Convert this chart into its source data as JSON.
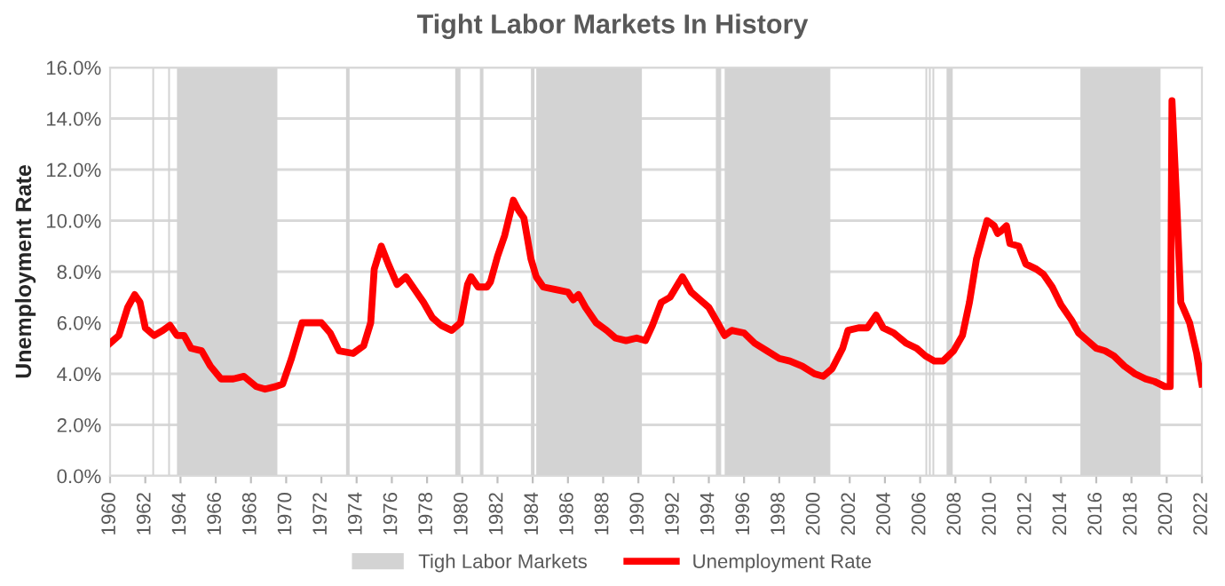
{
  "chart_data": {
    "type": "line",
    "title": "Tight Labor Markets In History",
    "ylabel": "Unemployment Rate",
    "xlim": [
      1960,
      2022
    ],
    "xticks": [
      1960,
      1962,
      1964,
      1966,
      1968,
      1970,
      1972,
      1974,
      1976,
      1978,
      1980,
      1982,
      1984,
      1986,
      1988,
      1990,
      1992,
      1994,
      1996,
      1998,
      2000,
      2002,
      2004,
      2006,
      2008,
      2010,
      2012,
      2014,
      2016,
      2018,
      2020,
      2022
    ],
    "ylim": [
      0,
      16
    ],
    "yticks": [
      {
        "value": 0,
        "label": "0.0%"
      },
      {
        "value": 2,
        "label": "2.0%"
      },
      {
        "value": 4,
        "label": "4.0%"
      },
      {
        "value": 6,
        "label": "6.0%"
      },
      {
        "value": 8,
        "label": "8.0%"
      },
      {
        "value": 10,
        "label": "10.0%"
      },
      {
        "value": 12,
        "label": "12.0%"
      },
      {
        "value": 14,
        "label": "14.0%"
      },
      {
        "value": 16,
        "label": "16.0%"
      }
    ],
    "grid": "y",
    "legend": "bottom",
    "marker": "none",
    "line_style": "solid",
    "bands": [
      {
        "axis": "x",
        "from": 1962.4,
        "to": 1962.5,
        "label": "Tigh Labor Markets",
        "color": "#d3d3d3"
      },
      {
        "axis": "x",
        "from": 1963.3,
        "to": 1963.4,
        "color": "#d3d3d3"
      },
      {
        "axis": "x",
        "from": 1963.8,
        "to": 1969.5,
        "color": "#d3d3d3"
      },
      {
        "axis": "x",
        "from": 1973.4,
        "to": 1973.6,
        "color": "#d3d3d3"
      },
      {
        "axis": "x",
        "from": 1979.6,
        "to": 1979.9,
        "color": "#d3d3d3"
      },
      {
        "axis": "x",
        "from": 1981.0,
        "to": 1981.2,
        "color": "#d3d3d3"
      },
      {
        "axis": "x",
        "from": 1983.9,
        "to": 1984.1,
        "color": "#d3d3d3"
      },
      {
        "axis": "x",
        "from": 1984.2,
        "to": 1990.2,
        "color": "#d3d3d3"
      },
      {
        "axis": "x",
        "from": 1994.4,
        "to": 1994.7,
        "color": "#d3d3d3"
      },
      {
        "axis": "x",
        "from": 1994.9,
        "to": 2000.9,
        "color": "#d3d3d3"
      },
      {
        "axis": "x",
        "from": 2006.3,
        "to": 2006.4,
        "color": "#d3d3d3"
      },
      {
        "axis": "x",
        "from": 2006.5,
        "to": 2006.6,
        "color": "#d3d3d3"
      },
      {
        "axis": "x",
        "from": 2006.7,
        "to": 2006.8,
        "color": "#d3d3d3"
      },
      {
        "axis": "x",
        "from": 2007.5,
        "to": 2007.85,
        "color": "#d3d3d3"
      },
      {
        "axis": "x",
        "from": 2015.1,
        "to": 2019.65,
        "color": "#d3d3d3"
      }
    ],
    "series": [
      {
        "name": "Unemployment Rate",
        "color": "#ff0000",
        "x": [
          1960.0,
          1960.5,
          1961.0,
          1961.4,
          1961.7,
          1962.0,
          1962.5,
          1963.0,
          1963.4,
          1963.8,
          1964.2,
          1964.6,
          1965.2,
          1965.7,
          1966.3,
          1967.0,
          1967.6,
          1968.3,
          1968.8,
          1969.4,
          1969.8,
          1970.3,
          1970.9,
          1971.5,
          1972.0,
          1972.5,
          1973.0,
          1973.8,
          1974.4,
          1974.8,
          1975.0,
          1975.4,
          1975.8,
          1976.3,
          1976.8,
          1977.3,
          1977.8,
          1978.3,
          1978.8,
          1979.4,
          1979.9,
          1980.3,
          1980.5,
          1980.9,
          1981.4,
          1981.6,
          1982.0,
          1982.4,
          1982.9,
          1983.2,
          1983.5,
          1983.9,
          1984.2,
          1984.6,
          1985.3,
          1986.0,
          1986.3,
          1986.6,
          1987.0,
          1987.6,
          1988.2,
          1988.7,
          1989.3,
          1989.9,
          1990.4,
          1990.8,
          1991.3,
          1991.8,
          1992.5,
          1993.0,
          1993.5,
          1994.0,
          1994.5,
          1994.9,
          1995.3,
          1996.0,
          1996.6,
          1997.3,
          1998.0,
          1998.6,
          1999.3,
          2000.0,
          2000.5,
          2001.0,
          2001.6,
          2001.9,
          2002.5,
          2003.0,
          2003.5,
          2003.9,
          2004.5,
          2005.2,
          2005.8,
          2006.3,
          2006.8,
          2007.3,
          2007.9,
          2008.4,
          2008.8,
          2009.2,
          2009.6,
          2009.8,
          2010.2,
          2010.4,
          2010.6,
          2010.9,
          2011.1,
          2011.6,
          2012.0,
          2012.6,
          2013.0,
          2013.5,
          2014.0,
          2014.6,
          2015.0,
          2015.5,
          2016.0,
          2016.5,
          2017.0,
          2017.6,
          2018.2,
          2018.8,
          2019.3,
          2019.9,
          2020.2,
          2020.3,
          2020.6,
          2020.8,
          2021.3,
          2021.7,
          2022.0
        ],
        "values": [
          5.2,
          5.5,
          6.6,
          7.1,
          6.8,
          5.8,
          5.5,
          5.7,
          5.9,
          5.5,
          5.5,
          5.0,
          4.9,
          4.3,
          3.8,
          3.8,
          3.9,
          3.5,
          3.4,
          3.5,
          3.6,
          4.6,
          6.0,
          6.0,
          6.0,
          5.6,
          4.9,
          4.8,
          5.1,
          6.0,
          8.1,
          9.0,
          8.3,
          7.5,
          7.8,
          7.3,
          6.8,
          6.2,
          5.9,
          5.7,
          6.0,
          7.5,
          7.8,
          7.4,
          7.4,
          7.6,
          8.6,
          9.4,
          10.8,
          10.4,
          10.1,
          8.5,
          7.8,
          7.4,
          7.3,
          7.2,
          6.9,
          7.1,
          6.6,
          6.0,
          5.7,
          5.4,
          5.3,
          5.4,
          5.3,
          5.9,
          6.8,
          7.0,
          7.8,
          7.2,
          6.9,
          6.6,
          6.0,
          5.5,
          5.7,
          5.6,
          5.2,
          4.9,
          4.6,
          4.5,
          4.3,
          4.0,
          3.9,
          4.2,
          5.0,
          5.7,
          5.8,
          5.8,
          6.3,
          5.8,
          5.6,
          5.2,
          5.0,
          4.7,
          4.5,
          4.5,
          4.9,
          5.5,
          6.8,
          8.5,
          9.5,
          10.0,
          9.8,
          9.5,
          9.6,
          9.8,
          9.1,
          9.0,
          8.3,
          8.1,
          7.9,
          7.4,
          6.7,
          6.1,
          5.6,
          5.3,
          5.0,
          4.9,
          4.7,
          4.3,
          4.0,
          3.8,
          3.7,
          3.5,
          3.5,
          14.7,
          10.2,
          6.8,
          6.0,
          4.8,
          3.6
        ]
      }
    ]
  }
}
